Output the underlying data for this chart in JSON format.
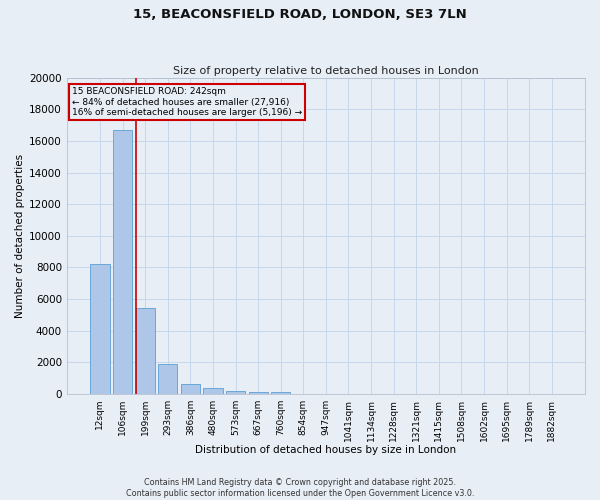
{
  "title_line1": "15, BEACONSFIELD ROAD, LONDON, SE3 7LN",
  "title_line2": "Size of property relative to detached houses in London",
  "xlabel": "Distribution of detached houses by size in London",
  "ylabel": "Number of detached properties",
  "categories": [
    "12sqm",
    "106sqm",
    "199sqm",
    "293sqm",
    "386sqm",
    "480sqm",
    "573sqm",
    "667sqm",
    "760sqm",
    "854sqm",
    "947sqm",
    "1041sqm",
    "1134sqm",
    "1228sqm",
    "1321sqm",
    "1415sqm",
    "1508sqm",
    "1602sqm",
    "1695sqm",
    "1789sqm",
    "1882sqm"
  ],
  "values": [
    8200,
    16700,
    5400,
    1900,
    650,
    350,
    200,
    130,
    100,
    0,
    0,
    0,
    0,
    0,
    0,
    0,
    0,
    0,
    0,
    0,
    0
  ],
  "bar_color": "#aec6e8",
  "bar_edge_color": "#5a9fd4",
  "vline_color": "#cc0000",
  "vline_x_index": 2,
  "ylim": [
    0,
    20000
  ],
  "yticks": [
    0,
    2000,
    4000,
    6000,
    8000,
    10000,
    12000,
    14000,
    16000,
    18000,
    20000
  ],
  "annotation_title": "15 BEACONSFIELD ROAD: 242sqm",
  "annotation_line1": "← 84% of detached houses are smaller (27,916)",
  "annotation_line2": "16% of semi-detached houses are larger (5,196) →",
  "annotation_box_color": "#cc0000",
  "grid_color": "#c8d8ec",
  "background_color": "#e8eef6",
  "footer_line1": "Contains HM Land Registry data © Crown copyright and database right 2025.",
  "footer_line2": "Contains public sector information licensed under the Open Government Licence v3.0."
}
